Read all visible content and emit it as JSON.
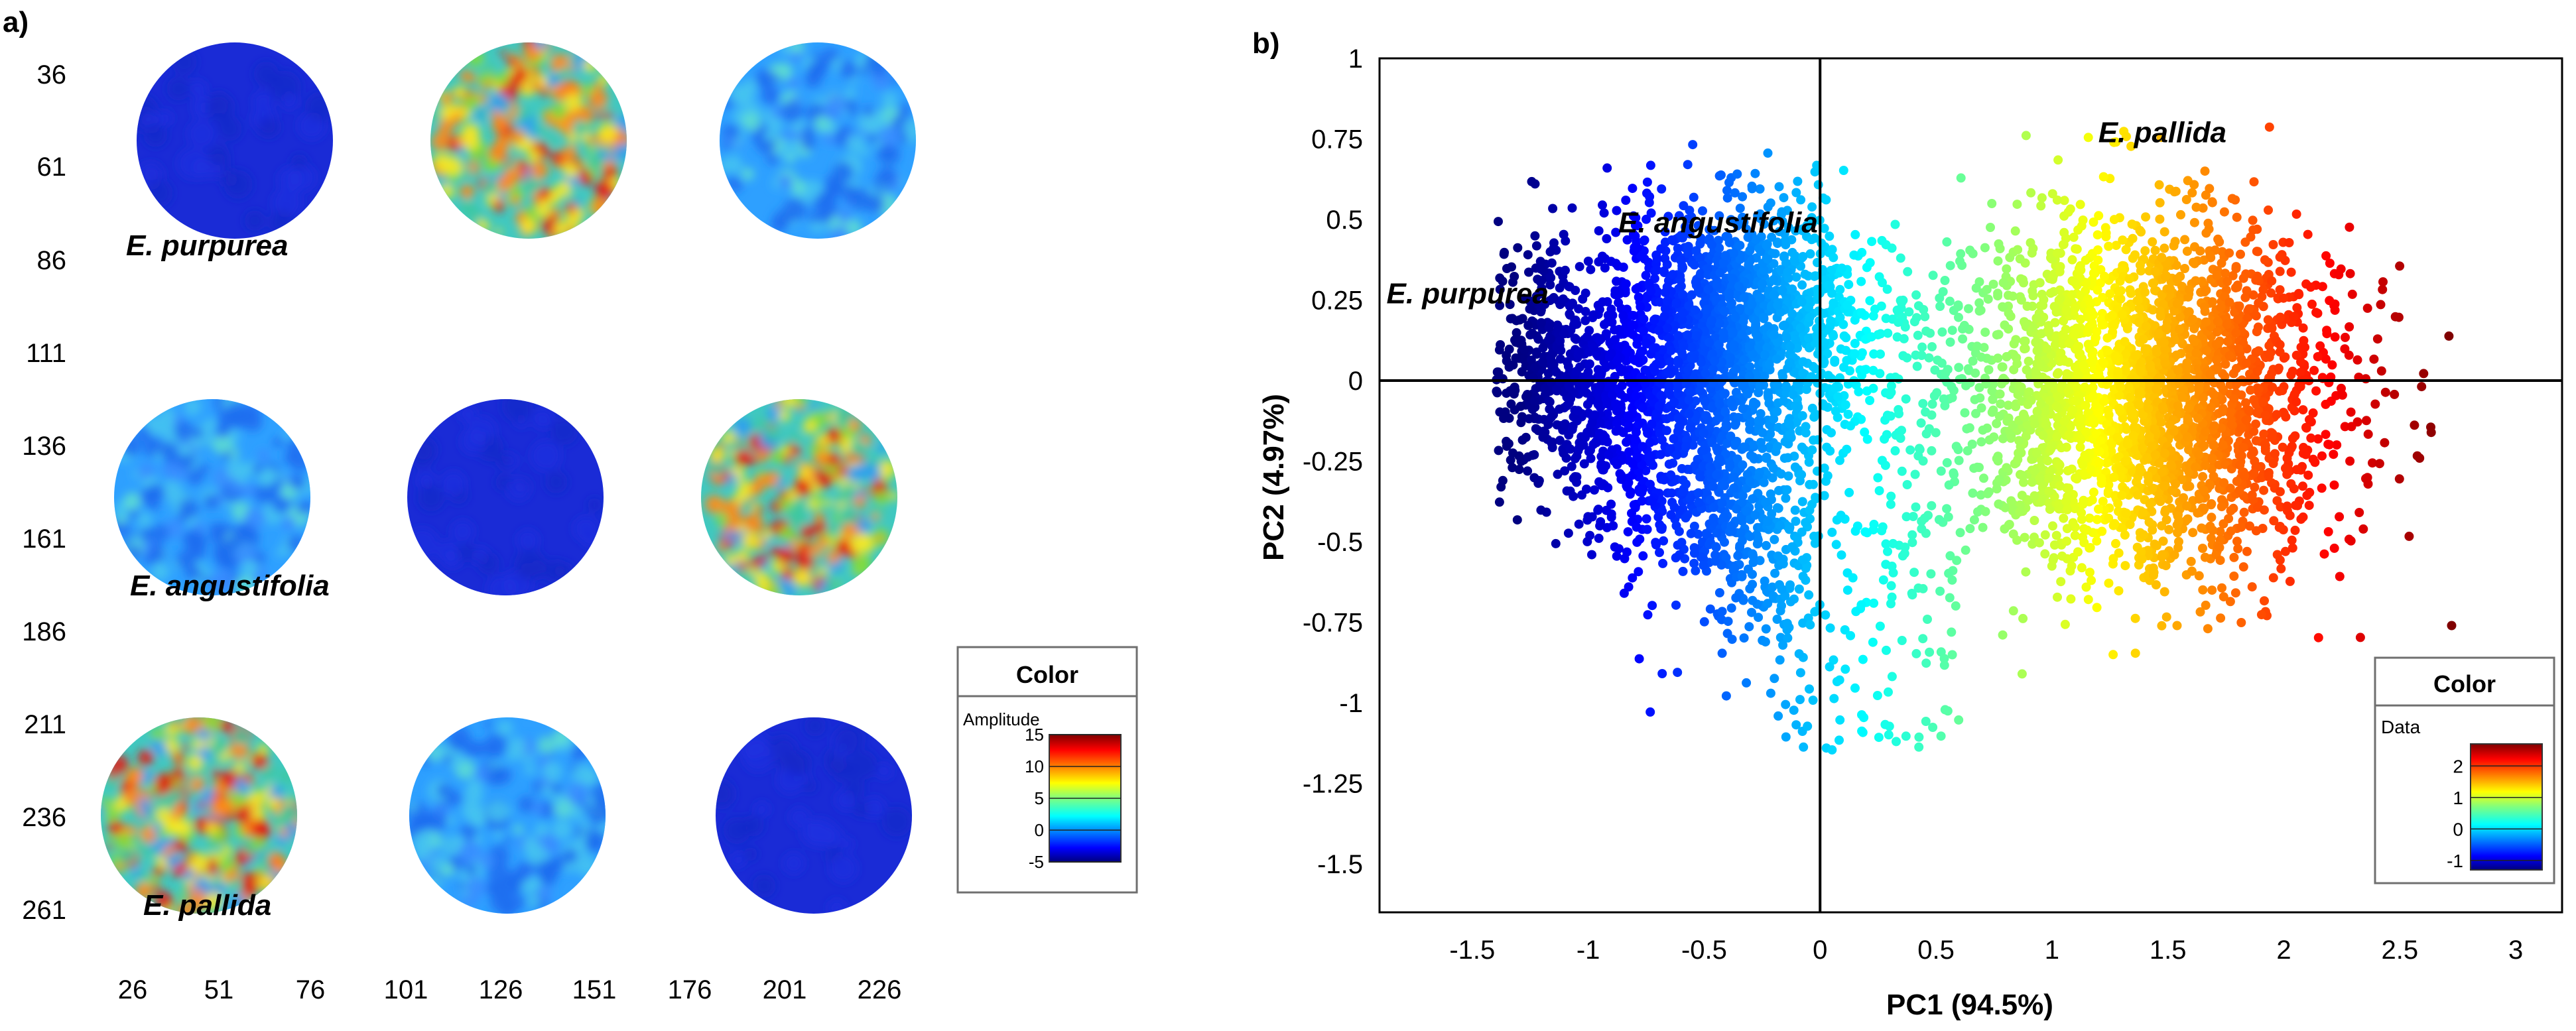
{
  "chart_data": [
    {
      "type": "heatmap",
      "panel_label": "a)",
      "y_ticks": [
        "36",
        "61",
        "86",
        "111",
        "136",
        "161",
        "186",
        "211",
        "236",
        "261"
      ],
      "x_ticks": [
        "26",
        "51",
        "76",
        "101",
        "126",
        "151",
        "176",
        "201",
        "226"
      ],
      "legend": {
        "title": "Color",
        "subtitle": "Amplitude",
        "ticks": [
          "15",
          "10",
          "5",
          "0",
          "-5"
        ],
        "range": [
          -5,
          15
        ]
      },
      "species": [
        "E. purpurea",
        "E. angustifolia",
        "E. pallida"
      ],
      "matrix": [
        [
          -5,
          8,
          1
        ],
        [
          1,
          -5,
          8
        ],
        [
          8,
          1,
          -5
        ]
      ],
      "colors": {
        "low": "#1a2bd6",
        "mid": "#2ea0ff",
        "high": "#e8201c"
      }
    },
    {
      "type": "scatter",
      "panel_label": "b)",
      "xlabel": "PC1 (94.5%)",
      "ylabel": "PC2 (4.97%)",
      "xlim": [
        -1.9,
        3.2
      ],
      "ylim": [
        -1.65,
        1.0
      ],
      "x_ticks": [
        "-1.5",
        "-1",
        "-0.5",
        "0",
        "0.5",
        "1",
        "1.5",
        "2",
        "2.5",
        "3"
      ],
      "y_ticks": [
        "1",
        "0.75",
        "0.5",
        "0.25",
        "0",
        "-0.25",
        "-0.5",
        "-0.75",
        "-1",
        "-1.25",
        "-1.5"
      ],
      "annotations": [
        {
          "text": "E. purpurea",
          "x": -1.87,
          "y": 0.24
        },
        {
          "text": "E. angustifolia",
          "x": -0.87,
          "y": 0.46
        },
        {
          "text": "E. pallida",
          "x": 1.2,
          "y": 0.74
        }
      ],
      "clusters": [
        {
          "name": "E. purpurea",
          "center": [
            -0.85,
            -0.15
          ],
          "spread": [
            0.3,
            0.22
          ],
          "count": 1400,
          "color_value": -1.2
        },
        {
          "name": "E. angustifolia",
          "center": [
            -0.35,
            0.2
          ],
          "spread": [
            0.3,
            0.17
          ],
          "count": 1400,
          "color_value": -0.3
        },
        {
          "name": "E. pallida",
          "center": [
            1.4,
            -0.05
          ],
          "spread": [
            0.42,
            0.27
          ],
          "count": 2600,
          "color_value": 1.2
        }
      ],
      "legend": {
        "title": "Color",
        "subtitle": "Data",
        "ticks": [
          "2",
          "1",
          "0",
          "-1"
        ],
        "range": [
          -1.3,
          2.7
        ]
      }
    }
  ]
}
